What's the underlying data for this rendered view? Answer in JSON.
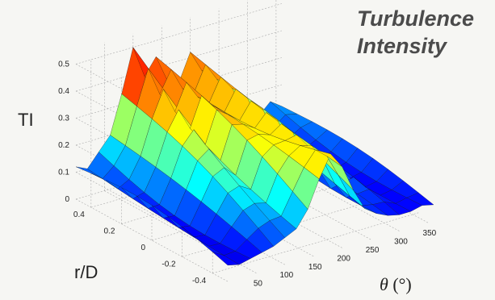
{
  "chart_data": {
    "type": "surface",
    "title_lines": [
      "Turbulence",
      "Intensity"
    ],
    "zlabel": "TI",
    "ylabel": "r/D",
    "xlabel_symbol": "θ",
    "xlabel_unit": "(°)",
    "x_ticks": [
      50,
      100,
      150,
      200,
      250,
      300,
      350
    ],
    "y_ticks": [
      0.4,
      0.2,
      0,
      -0.2,
      -0.4
    ],
    "z_ticks": [
      0,
      0.1,
      0.2,
      0.3,
      0.4,
      0.5
    ],
    "x_tick_labels": [
      "50",
      "100",
      "150",
      "200",
      "250",
      "300",
      "350"
    ],
    "y_tick_labels": [
      "0.4",
      "0.2",
      "0",
      "-0.2",
      "-0.4"
    ],
    "z_tick_labels": [
      "0",
      "0.1",
      "0.2",
      "0.3",
      "0.4",
      "0.5"
    ],
    "xlim": [
      0,
      360
    ],
    "ylim": [
      -0.5,
      0.5
    ],
    "zlim": [
      0,
      0.55
    ],
    "grid": true,
    "colormap": "jet",
    "profile_theta": [
      0,
      20,
      40,
      60,
      80,
      100,
      120,
      140,
      160,
      180,
      200,
      220,
      240,
      260,
      280,
      300,
      320,
      340,
      360
    ],
    "profile_ti_back": [
      0.12,
      0.1,
      0.15,
      0.2,
      0.34,
      0.5,
      0.38,
      0.44,
      0.34,
      0.32,
      0.42,
      0.34,
      0.28,
      0.2,
      0.14,
      0.12,
      0.11,
      0.15,
      0.12
    ],
    "profile_ti_front": [
      0.06,
      0.05,
      0.06,
      0.07,
      0.08,
      0.1,
      0.12,
      0.18,
      0.28,
      0.36,
      0.3,
      0.2,
      0.12,
      0.09,
      0.07,
      0.06,
      0.06,
      0.07,
      0.06
    ]
  }
}
